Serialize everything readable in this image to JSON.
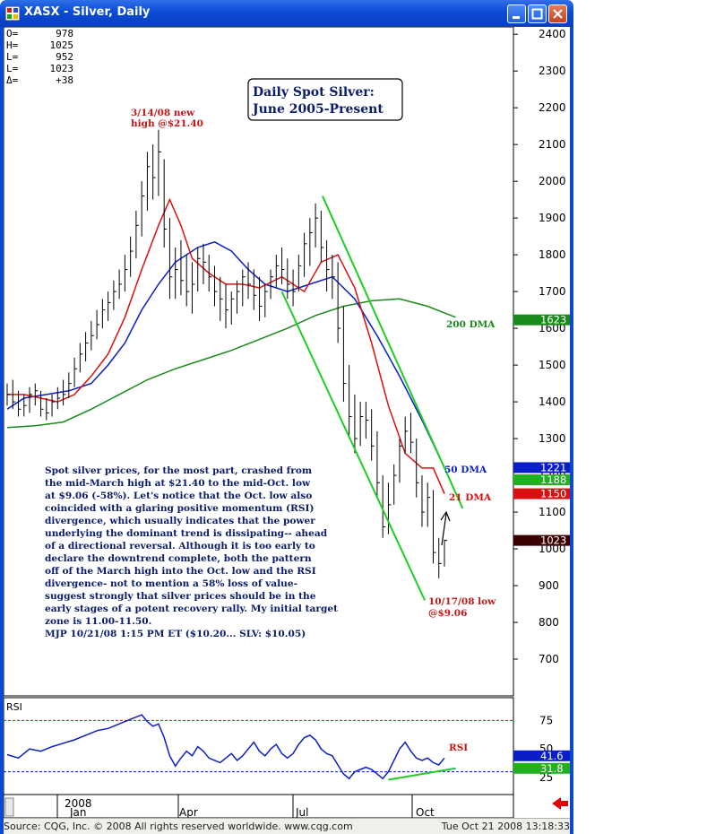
{
  "window": {
    "title": "XASX - Silver, Daily",
    "accent": "#0a4bd6"
  },
  "ohlc_box": [
    {
      "label": "O=",
      "value": "978"
    },
    {
      "label": "H=",
      "value": "1025"
    },
    {
      "label": "L=",
      "value": "952"
    },
    {
      "label": "L=",
      "value": "1023"
    },
    {
      "label": "Δ=",
      "value": "+38"
    }
  ],
  "chart_data": {
    "type": "line",
    "title_lines": [
      "Daily Spot Silver:",
      "June 2005-Present"
    ],
    "y_axis": {
      "min": 600,
      "max": 2420,
      "ticks": [
        700,
        800,
        900,
        1000,
        1100,
        1200,
        1300,
        1400,
        1500,
        1600,
        1700,
        1800,
        1900,
        2000,
        2100,
        2200,
        2300,
        2400
      ]
    },
    "x_axis": {
      "ticks": [
        "2008",
        "Jan",
        "Apr",
        "Jul",
        "Oct"
      ]
    },
    "grid": false,
    "price_bars": [
      {
        "t": 0,
        "h": 1450,
        "l": 1390,
        "c": 1420
      },
      {
        "t": 4,
        "h": 1460,
        "l": 1380,
        "c": 1400
      },
      {
        "t": 8,
        "h": 1430,
        "l": 1360,
        "c": 1380
      },
      {
        "t": 12,
        "h": 1420,
        "l": 1360,
        "c": 1390
      },
      {
        "t": 16,
        "h": 1440,
        "l": 1370,
        "c": 1420
      },
      {
        "t": 20,
        "h": 1450,
        "l": 1390,
        "c": 1430
      },
      {
        "t": 24,
        "h": 1430,
        "l": 1360,
        "c": 1380
      },
      {
        "t": 28,
        "h": 1410,
        "l": 1350,
        "c": 1370
      },
      {
        "t": 32,
        "h": 1420,
        "l": 1360,
        "c": 1400
      },
      {
        "t": 36,
        "h": 1440,
        "l": 1380,
        "c": 1410
      },
      {
        "t": 40,
        "h": 1460,
        "l": 1390,
        "c": 1420
      },
      {
        "t": 44,
        "h": 1480,
        "l": 1410,
        "c": 1450
      },
      {
        "t": 48,
        "h": 1520,
        "l": 1440,
        "c": 1490
      },
      {
        "t": 52,
        "h": 1560,
        "l": 1480,
        "c": 1530
      },
      {
        "t": 56,
        "h": 1590,
        "l": 1510,
        "c": 1560
      },
      {
        "t": 60,
        "h": 1620,
        "l": 1540,
        "c": 1580
      },
      {
        "t": 64,
        "h": 1650,
        "l": 1570,
        "c": 1610
      },
      {
        "t": 68,
        "h": 1680,
        "l": 1600,
        "c": 1650
      },
      {
        "t": 72,
        "h": 1700,
        "l": 1620,
        "c": 1670
      },
      {
        "t": 76,
        "h": 1730,
        "l": 1650,
        "c": 1700
      },
      {
        "t": 80,
        "h": 1760,
        "l": 1680,
        "c": 1720
      },
      {
        "t": 84,
        "h": 1800,
        "l": 1700,
        "c": 1760
      },
      {
        "t": 88,
        "h": 1850,
        "l": 1740,
        "c": 1810
      },
      {
        "t": 92,
        "h": 1920,
        "l": 1790,
        "c": 1880
      },
      {
        "t": 96,
        "h": 2000,
        "l": 1850,
        "c": 1960
      },
      {
        "t": 100,
        "h": 2080,
        "l": 1920,
        "c": 2040
      },
      {
        "t": 104,
        "h": 2100,
        "l": 1950,
        "c": 2010
      },
      {
        "t": 108,
        "h": 2140,
        "l": 1960,
        "c": 2080
      },
      {
        "t": 112,
        "h": 2060,
        "l": 1820,
        "c": 1870
      },
      {
        "t": 116,
        "h": 1900,
        "l": 1680,
        "c": 1740
      },
      {
        "t": 120,
        "h": 1820,
        "l": 1680,
        "c": 1760
      },
      {
        "t": 124,
        "h": 1840,
        "l": 1690,
        "c": 1730
      },
      {
        "t": 128,
        "h": 1800,
        "l": 1660,
        "c": 1700
      },
      {
        "t": 132,
        "h": 1780,
        "l": 1640,
        "c": 1720
      },
      {
        "t": 136,
        "h": 1820,
        "l": 1700,
        "c": 1790
      },
      {
        "t": 140,
        "h": 1830,
        "l": 1720,
        "c": 1780
      },
      {
        "t": 144,
        "h": 1800,
        "l": 1700,
        "c": 1740
      },
      {
        "t": 148,
        "h": 1770,
        "l": 1660,
        "c": 1700
      },
      {
        "t": 152,
        "h": 1740,
        "l": 1620,
        "c": 1680
      },
      {
        "t": 156,
        "h": 1720,
        "l": 1600,
        "c": 1650
      },
      {
        "t": 160,
        "h": 1700,
        "l": 1610,
        "c": 1680
      },
      {
        "t": 164,
        "h": 1730,
        "l": 1640,
        "c": 1700
      },
      {
        "t": 168,
        "h": 1760,
        "l": 1660,
        "c": 1740
      },
      {
        "t": 172,
        "h": 1780,
        "l": 1680,
        "c": 1720
      },
      {
        "t": 176,
        "h": 1760,
        "l": 1650,
        "c": 1690
      },
      {
        "t": 180,
        "h": 1740,
        "l": 1620,
        "c": 1660
      },
      {
        "t": 184,
        "h": 1720,
        "l": 1630,
        "c": 1700
      },
      {
        "t": 188,
        "h": 1760,
        "l": 1680,
        "c": 1740
      },
      {
        "t": 192,
        "h": 1800,
        "l": 1710,
        "c": 1770
      },
      {
        "t": 196,
        "h": 1820,
        "l": 1720,
        "c": 1760
      },
      {
        "t": 200,
        "h": 1790,
        "l": 1680,
        "c": 1720
      },
      {
        "t": 204,
        "h": 1760,
        "l": 1660,
        "c": 1700
      },
      {
        "t": 208,
        "h": 1800,
        "l": 1700,
        "c": 1770
      },
      {
        "t": 212,
        "h": 1860,
        "l": 1740,
        "c": 1830
      },
      {
        "t": 216,
        "h": 1900,
        "l": 1770,
        "c": 1860
      },
      {
        "t": 220,
        "h": 1940,
        "l": 1820,
        "c": 1900
      },
      {
        "t": 224,
        "h": 1920,
        "l": 1780,
        "c": 1820
      },
      {
        "t": 228,
        "h": 1840,
        "l": 1700,
        "c": 1760
      },
      {
        "t": 232,
        "h": 1800,
        "l": 1680,
        "c": 1740
      },
      {
        "t": 236,
        "h": 1780,
        "l": 1560,
        "c": 1600
      },
      {
        "t": 240,
        "h": 1660,
        "l": 1400,
        "c": 1450
      },
      {
        "t": 244,
        "h": 1500,
        "l": 1300,
        "c": 1360
      },
      {
        "t": 248,
        "h": 1420,
        "l": 1260,
        "c": 1300
      },
      {
        "t": 252,
        "h": 1400,
        "l": 1280,
        "c": 1360
      },
      {
        "t": 256,
        "h": 1400,
        "l": 1300,
        "c": 1350
      },
      {
        "t": 260,
        "h": 1380,
        "l": 1240,
        "c": 1280
      },
      {
        "t": 264,
        "h": 1320,
        "l": 1140,
        "c": 1180
      },
      {
        "t": 268,
        "h": 1200,
        "l": 1030,
        "c": 1060
      },
      {
        "t": 272,
        "h": 1180,
        "l": 1040,
        "c": 1120
      },
      {
        "t": 276,
        "h": 1230,
        "l": 1120,
        "c": 1200
      },
      {
        "t": 280,
        "h": 1300,
        "l": 1180,
        "c": 1280
      },
      {
        "t": 284,
        "h": 1360,
        "l": 1260,
        "c": 1320
      },
      {
        "t": 288,
        "h": 1370,
        "l": 1260,
        "c": 1290
      },
      {
        "t": 292,
        "h": 1300,
        "l": 1140,
        "c": 1180
      },
      {
        "t": 296,
        "h": 1200,
        "l": 1060,
        "c": 1100
      },
      {
        "t": 300,
        "h": 1180,
        "l": 1060,
        "c": 1140
      },
      {
        "t": 304,
        "h": 1160,
        "l": 960,
        "c": 990
      },
      {
        "t": 308,
        "h": 1030,
        "l": 920,
        "c": 960
      },
      {
        "t": 312,
        "h": 1025,
        "l": 952,
        "c": 1023
      }
    ],
    "series": [
      {
        "name": "200 DMA",
        "color": "#1a8a1a",
        "label_value": "1623",
        "points": [
          [
            0,
            1330
          ],
          [
            20,
            1335
          ],
          [
            40,
            1345
          ],
          [
            60,
            1380
          ],
          [
            80,
            1420
          ],
          [
            100,
            1460
          ],
          [
            120,
            1490
          ],
          [
            140,
            1515
          ],
          [
            160,
            1540
          ],
          [
            180,
            1570
          ],
          [
            200,
            1600
          ],
          [
            220,
            1635
          ],
          [
            240,
            1660
          ],
          [
            260,
            1675
          ],
          [
            280,
            1680
          ],
          [
            300,
            1660
          ],
          [
            320,
            1630
          ]
        ]
      },
      {
        "name": "50 DMA",
        "color": "#0a1ec8",
        "label_value": "1221",
        "points": [
          [
            0,
            1380
          ],
          [
            12,
            1410
          ],
          [
            28,
            1420
          ],
          [
            44,
            1430
          ],
          [
            60,
            1450
          ],
          [
            72,
            1500
          ],
          [
            84,
            1560
          ],
          [
            96,
            1650
          ],
          [
            108,
            1720
          ],
          [
            120,
            1780
          ],
          [
            136,
            1820
          ],
          [
            148,
            1835
          ],
          [
            160,
            1810
          ],
          [
            172,
            1760
          ],
          [
            184,
            1720
          ],
          [
            200,
            1700
          ],
          [
            216,
            1720
          ],
          [
            232,
            1740
          ],
          [
            248,
            1680
          ],
          [
            264,
            1580
          ],
          [
            280,
            1470
          ],
          [
            296,
            1350
          ],
          [
            312,
            1221
          ]
        ]
      },
      {
        "name": "21 DMA",
        "color": "#d81010",
        "label_value": "1150",
        "points": [
          [
            0,
            1420
          ],
          [
            12,
            1420
          ],
          [
            24,
            1410
          ],
          [
            36,
            1400
          ],
          [
            48,
            1420
          ],
          [
            60,
            1470
          ],
          [
            72,
            1530
          ],
          [
            84,
            1630
          ],
          [
            96,
            1760
          ],
          [
            108,
            1880
          ],
          [
            116,
            1950
          ],
          [
            124,
            1880
          ],
          [
            132,
            1790
          ],
          [
            144,
            1750
          ],
          [
            156,
            1720
          ],
          [
            168,
            1720
          ],
          [
            180,
            1710
          ],
          [
            196,
            1740
          ],
          [
            212,
            1700
          ],
          [
            224,
            1780
          ],
          [
            236,
            1800
          ],
          [
            248,
            1710
          ],
          [
            260,
            1560
          ],
          [
            272,
            1390
          ],
          [
            284,
            1260
          ],
          [
            296,
            1220
          ],
          [
            304,
            1220
          ],
          [
            312,
            1150
          ]
        ]
      }
    ],
    "current_price_label": "1023",
    "extra_price_label": "1188",
    "channel_lines": [
      {
        "name": "upper trend line",
        "points": [
          [
            225,
            1960
          ],
          [
            325,
            1110
          ]
        ]
      },
      {
        "name": "lower trend line",
        "points": [
          [
            196,
            1700
          ],
          [
            298,
            860
          ]
        ]
      }
    ],
    "annotations": [
      {
        "lines": [
          "3/14/08 new",
          "high @$21.40"
        ],
        "color": "#c01818"
      },
      {
        "lines": [
          "10/17/08 low",
          "@$9.06"
        ],
        "color": "#c01818"
      },
      {
        "lines": [
          "200 DMA"
        ],
        "color": "#1a8a1a"
      },
      {
        "lines": [
          "50 DMA"
        ],
        "color": "#0a1ec8"
      },
      {
        "lines": [
          "21 DMA"
        ],
        "color": "#d81010"
      }
    ],
    "rsi": {
      "name": "RSI",
      "ticks": [
        25,
        50,
        75
      ],
      "levels": [
        30,
        75
      ],
      "labels": [
        "41.6",
        "31.8"
      ],
      "points": [
        [
          0,
          45
        ],
        [
          8,
          42
        ],
        [
          16,
          50
        ],
        [
          24,
          48
        ],
        [
          32,
          52
        ],
        [
          40,
          55
        ],
        [
          48,
          58
        ],
        [
          56,
          62
        ],
        [
          64,
          66
        ],
        [
          72,
          68
        ],
        [
          80,
          72
        ],
        [
          88,
          76
        ],
        [
          96,
          80
        ],
        [
          100,
          74
        ],
        [
          104,
          70
        ],
        [
          108,
          72
        ],
        [
          112,
          60
        ],
        [
          116,
          44
        ],
        [
          120,
          35
        ],
        [
          124,
          42
        ],
        [
          128,
          48
        ],
        [
          132,
          44
        ],
        [
          136,
          52
        ],
        [
          140,
          48
        ],
        [
          144,
          42
        ],
        [
          148,
          40
        ],
        [
          152,
          38
        ],
        [
          156,
          42
        ],
        [
          160,
          46
        ],
        [
          164,
          40
        ],
        [
          168,
          44
        ],
        [
          172,
          50
        ],
        [
          176,
          56
        ],
        [
          180,
          48
        ],
        [
          184,
          44
        ],
        [
          188,
          50
        ],
        [
          192,
          54
        ],
        [
          196,
          46
        ],
        [
          200,
          42
        ],
        [
          204,
          46
        ],
        [
          208,
          54
        ],
        [
          212,
          60
        ],
        [
          216,
          62
        ],
        [
          220,
          58
        ],
        [
          224,
          50
        ],
        [
          228,
          46
        ],
        [
          232,
          44
        ],
        [
          236,
          36
        ],
        [
          240,
          28
        ],
        [
          244,
          24
        ],
        [
          248,
          30
        ],
        [
          252,
          32
        ],
        [
          256,
          34
        ],
        [
          260,
          32
        ],
        [
          264,
          28
        ],
        [
          268,
          24
        ],
        [
          272,
          30
        ],
        [
          276,
          40
        ],
        [
          280,
          50
        ],
        [
          284,
          56
        ],
        [
          288,
          48
        ],
        [
          292,
          42
        ],
        [
          296,
          40
        ],
        [
          300,
          42
        ],
        [
          304,
          38
        ],
        [
          308,
          36
        ],
        [
          312,
          42
        ]
      ]
    }
  },
  "commentary_lines": [
    "Spot silver prices, for the most part, crashed from",
    "the mid-March high at $21.40 to the mid-Oct. low",
    "at $9.06 (-58%). Let's notice that the Oct. low also",
    "coincided with a glaring positive momentum (RSI)",
    "divergence, which usually indicates that the power",
    "underlying the dominant trend is dissipating-- ahead",
    "of a directional reversal. Although it is too early to",
    "declare the downtrend complete, both the pattern",
    "off of the March high into the Oct. low and the RSI",
    "divergence- not to mention a 58% loss of value-",
    "suggest strongly that silver prices should be in the",
    "early stages of a potent recovery rally. My initial target",
    "zone is 11.00-11.50.",
    "MJP  10/21/08 1:15 PM ET ($10.20... SLV: $10.05)"
  ],
  "statusbar": {
    "source": "Source: CQG, Inc. © 2008 All rights reserved worldwide. www.cqg.com",
    "timestamp": "Tue Oct 21 2008 13:18:33"
  }
}
